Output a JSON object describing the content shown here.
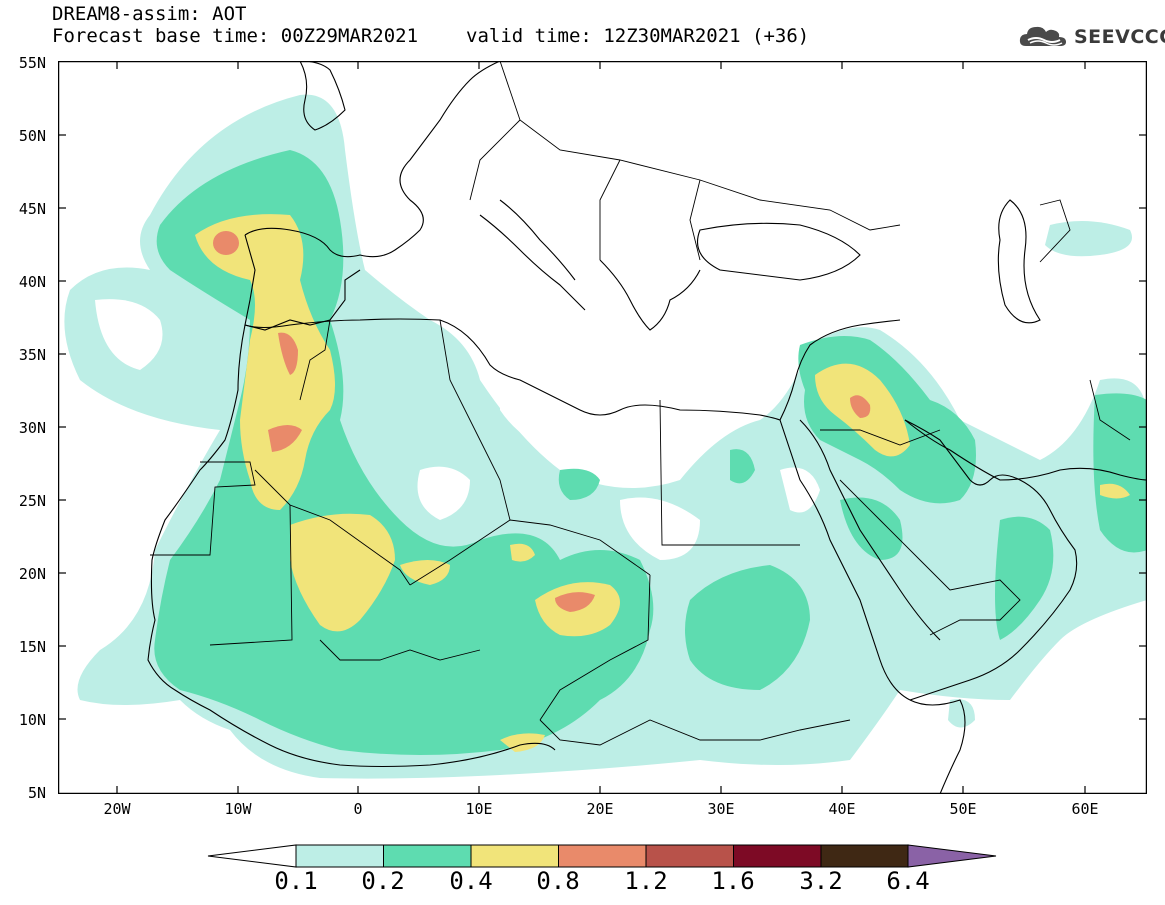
{
  "header": {
    "title_line1": "DREAM8-assim: AOT",
    "base_time": "Forecast base time: 00Z29MAR2021",
    "valid_time": "valid time: 12Z30MAR2021 (+36)"
  },
  "logo": {
    "text": "SEEVCCC",
    "icon": "cloud-logo-icon"
  },
  "map": {
    "variable": "AOT",
    "lon_range": [
      -25,
      65
    ],
    "lat_range": [
      5,
      55
    ],
    "y_labels": [
      "55N",
      "50N",
      "45N",
      "40N",
      "35N",
      "30N",
      "25N",
      "20N",
      "15N",
      "10N",
      "5N"
    ],
    "x_labels": [
      "20W",
      "10W",
      "0",
      "10E",
      "20E",
      "30E",
      "40E",
      "50E",
      "60E"
    ]
  },
  "colorbar": {
    "labels": [
      "0.1",
      "0.2",
      "0.4",
      "0.8",
      "1.2",
      "1.6",
      "3.2",
      "6.4"
    ],
    "colors": [
      "#bdeee6",
      "#5edcb0",
      "#f1e47a",
      "#e98a6a",
      "#b8524a",
      "#7d0a25",
      "#3f2814",
      "#8a62a6"
    ],
    "extend": "both"
  },
  "accent_colors": {
    "coast": "#000000",
    "background": "#ffffff"
  }
}
